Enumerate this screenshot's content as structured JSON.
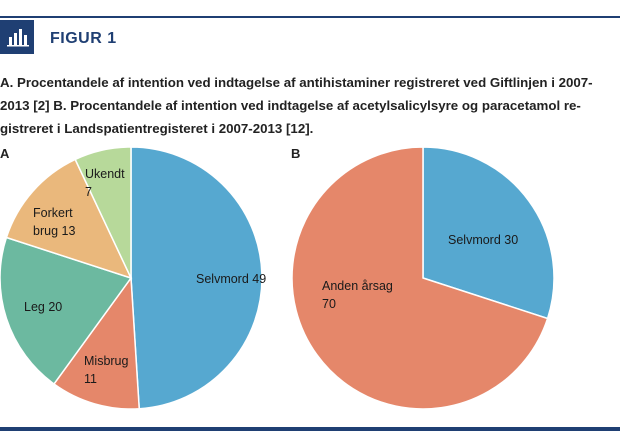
{
  "figure": {
    "title": "FIGUR 1",
    "icon": "bar-chart-icon",
    "caption_lines": [
      "A. Procentandele af intention ved indtagelse af antihistaminer registreret ved Giftlinjen i 2007-",
      "2013 [2] B. Procentandele af intention ved indtagelse af acetylsalicylsyre og paracetamol re-",
      "gistreret i Landspatientregisteret i 2007-2013 [12]."
    ],
    "accent_color": "#1f3f73"
  },
  "chart_data": [
    {
      "type": "pie",
      "panel": "A",
      "slices": [
        {
          "label": "Selvmord",
          "value": 49,
          "color": "#56a8d0"
        },
        {
          "label": "Misbrug",
          "value": 11,
          "color": "#e5876a"
        },
        {
          "label": "Leg",
          "value": 20,
          "color": "#6cb9a0"
        },
        {
          "label": "Forkert brug",
          "value": 13,
          "color": "#eab87c"
        },
        {
          "label": "Ukendt",
          "value": 7,
          "color": "#b7d99a"
        }
      ],
      "order": "clockwise from top"
    },
    {
      "type": "pie",
      "panel": "B",
      "slices": [
        {
          "label": "Selvmord",
          "value": 30,
          "color": "#56a8d0"
        },
        {
          "label": "Anden årsag",
          "value": 70,
          "color": "#e5876a"
        }
      ],
      "order": "clockwise from top"
    }
  ]
}
